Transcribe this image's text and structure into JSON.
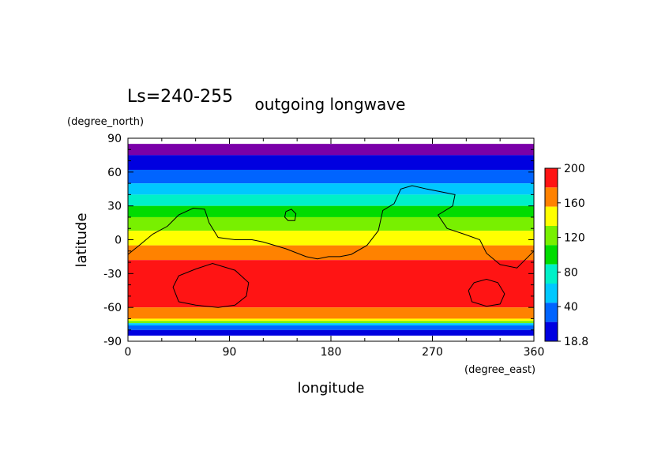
{
  "chart_data": {
    "type": "heatmap",
    "title": "outgoing longwave",
    "subtitle": "Ls=240-255",
    "xlabel": "longitude",
    "ylabel": "latitude",
    "x_unit": "(degree_east)",
    "y_unit": "(degree_north)",
    "xlim": [
      0,
      360
    ],
    "ylim": [
      -90,
      90
    ],
    "xticks": [
      0,
      90,
      180,
      270,
      360
    ],
    "yticks": [
      90,
      60,
      30,
      0,
      -30,
      -60,
      -90
    ],
    "colorbar": {
      "tick_labels": [
        "200",
        "160",
        "120",
        "80",
        "40",
        "18.8"
      ],
      "levels": [
        18.8,
        20,
        40,
        60,
        80,
        100,
        120,
        140,
        160,
        180,
        200
      ],
      "colors": [
        "#7a00a8",
        "#0000e0",
        "#0064ff",
        "#00c8ff",
        "#00f0c8",
        "#00dc00",
        "#78f000",
        "#ffff00",
        "#ff8200",
        "#ff1414"
      ]
    },
    "bands": [
      {
        "lat": [
          75,
          85
        ],
        "color": "#7a00a8",
        "value_range": [
          18.8,
          20
        ]
      },
      {
        "lat": [
          62,
          75
        ],
        "color": "#0000e0",
        "value_range": [
          20,
          40
        ]
      },
      {
        "lat": [
          50,
          62
        ],
        "color": "#0064ff",
        "value_range": [
          40,
          60
        ]
      },
      {
        "lat": [
          40,
          50
        ],
        "color": "#00c8ff",
        "value_range": [
          60,
          80
        ]
      },
      {
        "lat": [
          30,
          40
        ],
        "color": "#00f0c8",
        "value_range": [
          80,
          100
        ]
      },
      {
        "lat": [
          20,
          30
        ],
        "color": "#00dc00",
        "value_range": [
          100,
          120
        ]
      },
      {
        "lat": [
          8,
          20
        ],
        "color": "#78f000",
        "value_range": [
          120,
          140
        ]
      },
      {
        "lat": [
          -5,
          8
        ],
        "color": "#ffff00",
        "value_range": [
          140,
          160
        ]
      },
      {
        "lat": [
          -18,
          -5
        ],
        "color": "#ff8200",
        "value_range": [
          160,
          180
        ]
      },
      {
        "lat": [
          -60,
          -18
        ],
        "color": "#ff1414",
        "value_range": [
          180,
          200
        ]
      },
      {
        "lat": [
          -70,
          -60
        ],
        "color": "#ff8200",
        "value_range": [
          160,
          180
        ]
      },
      {
        "lat": [
          -72,
          -70
        ],
        "color": "#ffff00",
        "value_range": [
          140,
          160
        ]
      },
      {
        "lat": [
          -74,
          -72
        ],
        "color": "#78f000",
        "value_range": [
          120,
          140
        ]
      },
      {
        "lat": [
          -76,
          -74
        ],
        "color": "#00c8ff",
        "value_range": [
          60,
          80
        ]
      },
      {
        "lat": [
          -80,
          -76
        ],
        "color": "#0064ff",
        "value_range": [
          40,
          60
        ]
      },
      {
        "lat": [
          -85,
          -80
        ],
        "color": "#0000e0",
        "value_range": [
          20,
          40
        ]
      }
    ],
    "topography_contours": [
      [
        [
          0,
          -13
        ],
        [
          10,
          -5
        ],
        [
          22,
          5
        ],
        [
          35,
          12
        ],
        [
          45,
          22
        ],
        [
          58,
          28
        ],
        [
          68,
          27
        ],
        [
          72,
          15
        ],
        [
          80,
          2
        ],
        [
          95,
          0
        ],
        [
          110,
          0
        ],
        [
          120,
          -2
        ],
        [
          140,
          -8
        ],
        [
          158,
          -15
        ],
        [
          168,
          -17
        ],
        [
          178,
          -15
        ],
        [
          188,
          -15
        ],
        [
          198,
          -13
        ],
        [
          212,
          -5
        ],
        [
          222,
          8
        ],
        [
          226,
          26
        ],
        [
          236,
          32
        ],
        [
          242,
          45
        ],
        [
          252,
          48
        ],
        [
          265,
          45
        ],
        [
          280,
          42
        ],
        [
          290,
          40
        ],
        [
          288,
          30
        ],
        [
          275,
          22
        ],
        [
          283,
          10
        ],
        [
          298,
          5
        ],
        [
          312,
          0
        ],
        [
          318,
          -12
        ],
        [
          330,
          -22
        ],
        [
          345,
          -25
        ],
        [
          352,
          -18
        ],
        [
          360,
          -10
        ]
      ],
      [
        [
          140,
          25
        ],
        [
          145,
          27
        ],
        [
          149,
          23
        ],
        [
          148,
          17
        ],
        [
          142,
          17
        ],
        [
          139,
          20
        ],
        [
          140,
          25
        ]
      ],
      [
        [
          45,
          -55
        ],
        [
          40,
          -42
        ],
        [
          45,
          -32
        ],
        [
          60,
          -26
        ],
        [
          75,
          -21
        ],
        [
          95,
          -27
        ],
        [
          107,
          -38
        ],
        [
          105,
          -50
        ],
        [
          95,
          -58
        ],
        [
          80,
          -60
        ],
        [
          60,
          -58
        ],
        [
          45,
          -55
        ]
      ],
      [
        [
          302,
          -45
        ],
        [
          307,
          -38
        ],
        [
          318,
          -35
        ],
        [
          328,
          -38
        ],
        [
          334,
          -48
        ],
        [
          330,
          -57
        ],
        [
          318,
          -59
        ],
        [
          305,
          -55
        ],
        [
          302,
          -45
        ]
      ]
    ]
  }
}
